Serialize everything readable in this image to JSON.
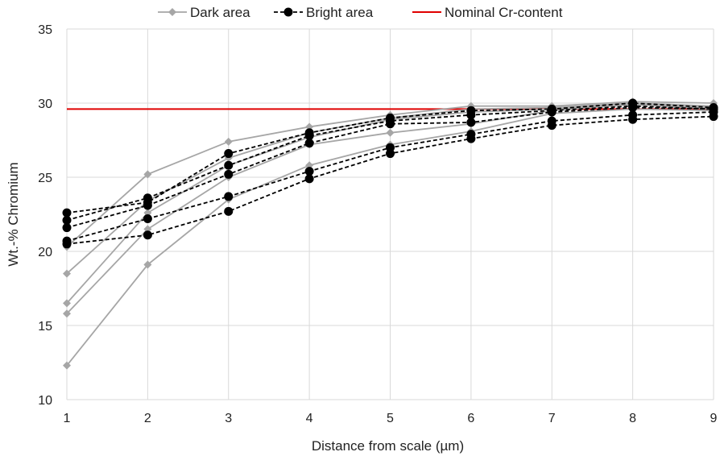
{
  "chart_data": {
    "type": "line",
    "title": "",
    "xlabel": "Distance from scale (µm)",
    "ylabel": "Wt.-% Chromium",
    "x": [
      1,
      2,
      3,
      4,
      5,
      6,
      7,
      8,
      9
    ],
    "xlim": [
      1,
      9
    ],
    "ylim": [
      10,
      35
    ],
    "y_ticks": [
      10,
      15,
      20,
      25,
      30,
      35
    ],
    "grid": "major",
    "legend_position": "top-center",
    "legend": [
      {
        "label": "Dark area",
        "color": "#a6a6a6",
        "style": "solid",
        "marker": "diamond"
      },
      {
        "label": "Bright area",
        "color": "#000000",
        "style": "dashed",
        "marker": "circle"
      },
      {
        "label": "Nominal Cr-content",
        "color": "#e00000",
        "style": "solid",
        "marker": "none"
      }
    ],
    "groups": [
      {
        "name": "Dark area",
        "color": "#a6a6a6",
        "style": "solid",
        "marker": "diamond",
        "series": [
          {
            "values": [
              20.3,
              25.2,
              27.4,
              28.4,
              29.2,
              29.8,
              29.8,
              30.1,
              30.0
            ]
          },
          {
            "values": [
              18.5,
              23.4,
              26.3,
              28.0,
              29.0,
              29.6,
              29.7,
              30.0,
              29.8
            ]
          },
          {
            "values": [
              16.5,
              22.6,
              25.8,
              27.7,
              28.9,
              29.4,
              29.6,
              29.9,
              29.7
            ]
          },
          {
            "values": [
              15.8,
              21.5,
              25.0,
              27.2,
              28.0,
              28.6,
              29.5,
              29.9,
              29.6
            ]
          },
          {
            "values": [
              12.3,
              19.1,
              23.5,
              25.8,
              27.2,
              28.1,
              29.3,
              29.6,
              29.5
            ]
          }
        ]
      },
      {
        "name": "Bright area",
        "color": "#000000",
        "style": "dashed",
        "marker": "circle",
        "series": [
          {
            "values": [
              22.6,
              23.3,
              26.6,
              28.0,
              29.0,
              29.5,
              29.6,
              30.0,
              29.7
            ]
          },
          {
            "values": [
              22.1,
              23.6,
              25.8,
              27.8,
              28.8,
              29.2,
              29.5,
              29.8,
              29.6
            ]
          },
          {
            "values": [
              21.6,
              23.1,
              25.2,
              27.3,
              28.6,
              28.7,
              29.4,
              29.7,
              29.6
            ]
          },
          {
            "values": [
              20.7,
              22.2,
              23.7,
              25.4,
              27.0,
              27.9,
              28.8,
              29.2,
              29.4
            ]
          },
          {
            "values": [
              20.5,
              21.1,
              22.7,
              24.9,
              26.6,
              27.6,
              28.5,
              28.9,
              29.1
            ]
          }
        ]
      }
    ],
    "reference_line": {
      "name": "Nominal Cr-content",
      "y": 29.6,
      "color": "#e00000"
    }
  }
}
